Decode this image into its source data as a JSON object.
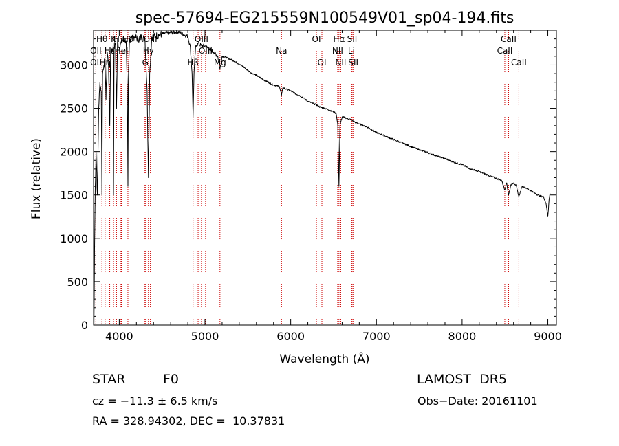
{
  "chart_data": {
    "type": "line",
    "title": "spec-57694-EG215559N100549V01_sp04-194.fits",
    "xlabel": "Wavelength (Å)",
    "ylabel": "Flux (relative)",
    "xlim": [
      3700,
      9100
    ],
    "ylim": [
      0,
      3400
    ],
    "x_ticks": [
      4000,
      5000,
      6000,
      7000,
      8000,
      9000
    ],
    "y_ticks": [
      0,
      500,
      1000,
      1500,
      2000,
      2500,
      3000
    ],
    "grid": false,
    "line_color": "#000000",
    "marker_color": "#cc0000",
    "series": [
      {
        "x": [
          3705,
          3712,
          3720,
          3730,
          3745,
          3760,
          3775,
          3790,
          3798,
          3805,
          3820,
          3835,
          3845,
          3860,
          3875,
          3889,
          3900,
          3915,
          3930,
          3933,
          3940,
          3955,
          3968,
          3980,
          3995,
          4020,
          4050,
          4080,
          4095,
          4101,
          4106,
          4120,
          4150,
          4180,
          4220,
          4260,
          4300,
          4325,
          4340,
          4355,
          4380,
          4420,
          4470,
          4520,
          4560,
          4600,
          4650,
          4700,
          4750,
          4800,
          4830,
          4850,
          4861,
          4872,
          4890,
          4920,
          4960,
          5000,
          5050,
          5100,
          5150,
          5175,
          5200,
          5260,
          5330,
          5400,
          5460,
          5520,
          5600,
          5700,
          5800,
          5870,
          5893,
          5910,
          5950,
          6000,
          6050,
          6100,
          6150,
          6200,
          6250,
          6300,
          6350,
          6400,
          6450,
          6500,
          6530,
          6550,
          6563,
          6575,
          6600,
          6640,
          6700,
          6750,
          6800,
          6850,
          6900,
          6950,
          7000,
          7100,
          7200,
          7300,
          7400,
          7500,
          7600,
          7700,
          7800,
          7900,
          8000,
          8100,
          8200,
          8300,
          8400,
          8460,
          8498,
          8520,
          8542,
          8570,
          8600,
          8630,
          8662,
          8700,
          8750,
          8800,
          8850,
          8900,
          8950,
          8980,
          9000,
          9015,
          9025
        ],
        "y": [
          0,
          900,
          1600,
          2000,
          1500,
          2500,
          2800,
          2700,
          1500,
          2900,
          3000,
          3050,
          2600,
          3150,
          3000,
          2300,
          3200,
          3150,
          3250,
          1500,
          3200,
          3250,
          2500,
          3300,
          3200,
          3250,
          3300,
          3280,
          2600,
          1600,
          2800,
          3300,
          3320,
          3320,
          3300,
          3320,
          3300,
          2700,
          1700,
          2900,
          3320,
          3330,
          3350,
          3360,
          3370,
          3370,
          3380,
          3380,
          3350,
          3330,
          3200,
          2900,
          2400,
          2900,
          3200,
          3250,
          3220,
          3220,
          3180,
          3150,
          3100,
          2950,
          3100,
          3080,
          3050,
          3010,
          2970,
          2920,
          2880,
          2820,
          2770,
          2750,
          2650,
          2740,
          2720,
          2700,
          2670,
          2650,
          2620,
          2580,
          2560,
          2540,
          2510,
          2500,
          2480,
          2460,
          2440,
          2300,
          1600,
          2300,
          2400,
          2390,
          2370,
          2340,
          2320,
          2300,
          2280,
          2250,
          2220,
          2180,
          2140,
          2100,
          2060,
          2020,
          1990,
          1950,
          1920,
          1880,
          1850,
          1800,
          1770,
          1730,
          1690,
          1670,
          1560,
          1640,
          1500,
          1620,
          1640,
          1610,
          1480,
          1600,
          1580,
          1550,
          1520,
          1490,
          1480,
          1400,
          1250,
          1450,
          1520
        ]
      }
    ],
    "line_markers": [
      {
        "label": "Hθ",
        "x": 3798,
        "row": 1
      },
      {
        "label": "K",
        "x": 3933,
        "row": 1
      },
      {
        "label": "H",
        "x": 3968,
        "row": 1
      },
      {
        "label": "Hδ",
        "x": 4101,
        "row": 1
      },
      {
        "label": "OII",
        "x": 3727,
        "row": 2
      },
      {
        "label": "Hε",
        "x": 3889,
        "row": 2
      },
      {
        "label": "HeI",
        "x": 4026,
        "row": 2
      },
      {
        "label": "OII",
        "x": 3727,
        "row": 3
      },
      {
        "label": "Hη",
        "x": 3835,
        "row": 3
      },
      {
        "label": "G",
        "x": 4304,
        "row": 3
      },
      {
        "label": "OIII",
        "x": 4363,
        "row": 1
      },
      {
        "label": "Hγ",
        "x": 4340,
        "row": 2
      },
      {
        "label": "OIII",
        "x": 4959,
        "row": 1
      },
      {
        "label": "OIII",
        "x": 5007,
        "row": 2
      },
      {
        "label": "Hβ",
        "x": 4861,
        "row": 3
      },
      {
        "label": "Mg",
        "x": 5175,
        "row": 3
      },
      {
        "label": "Na",
        "x": 5893,
        "row": 2
      },
      {
        "label": "OI",
        "x": 6300,
        "row": 1
      },
      {
        "label": "OI",
        "x": 6364,
        "row": 3
      },
      {
        "label": "Hα",
        "x": 6563,
        "row": 1
      },
      {
        "label": "NII",
        "x": 6548,
        "row": 2
      },
      {
        "label": "NII",
        "x": 6584,
        "row": 3
      },
      {
        "label": "SII",
        "x": 6717,
        "row": 1
      },
      {
        "label": "Li",
        "x": 6708,
        "row": 2
      },
      {
        "label": "SII",
        "x": 6731,
        "row": 3
      },
      {
        "label": "CaII",
        "x": 8542,
        "row": 1
      },
      {
        "label": "CaII",
        "x": 8498,
        "row": 2
      },
      {
        "label": "CaII",
        "x": 8662,
        "row": 3
      }
    ],
    "extra_marker_lines": [
      4020,
      4300,
      4920
    ]
  },
  "info": {
    "object_class": "STAR",
    "subclass": "F0",
    "survey": "LAMOST  DR5",
    "velocity": "cz = −11.3 ± 6.5 km/s",
    "obs_date": "Obs−Date: 20161101",
    "coords": "RA = 328.94302, DEC =  10.37831"
  }
}
